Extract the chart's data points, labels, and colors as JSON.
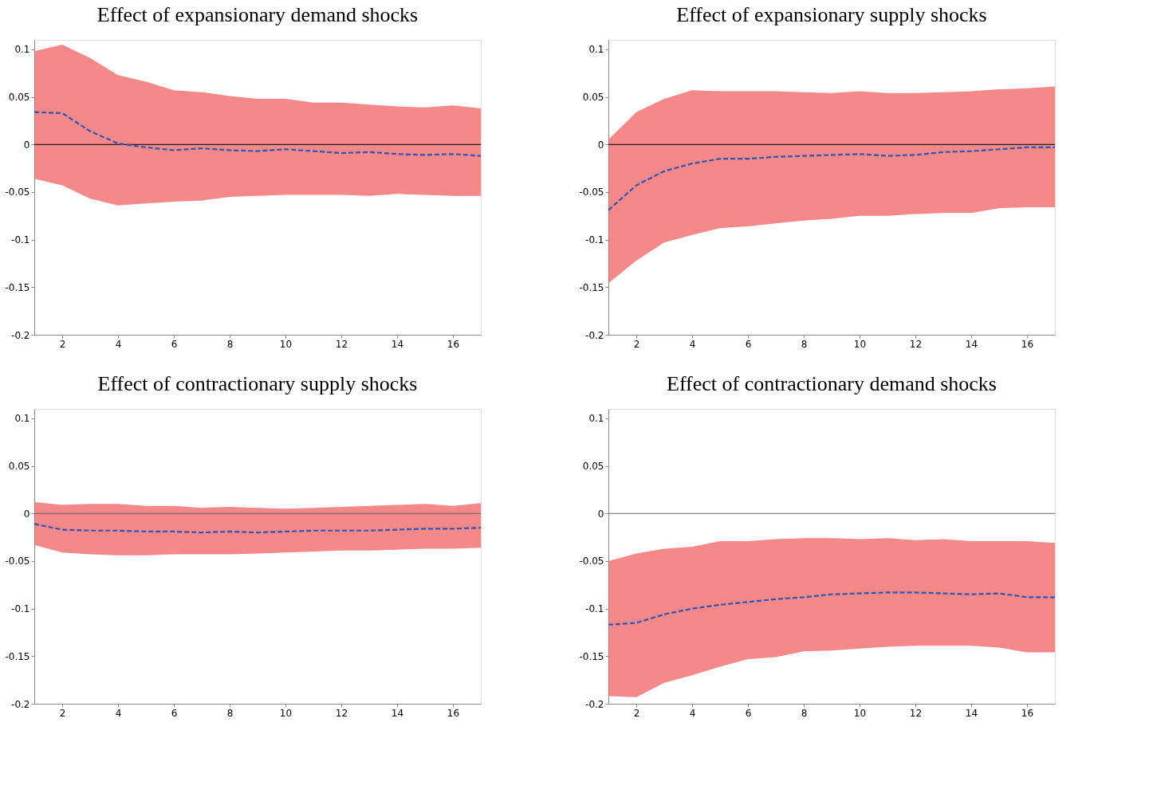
{
  "chart_data": [
    {
      "type": "line",
      "title": "Effect of expansionary demand shocks",
      "x": [
        1,
        2,
        3,
        4,
        5,
        6,
        7,
        8,
        9,
        10,
        11,
        12,
        13,
        14,
        15,
        16,
        17
      ],
      "xlim": [
        1,
        17
      ],
      "xticks": [
        2,
        4,
        6,
        8,
        10,
        12,
        14,
        16
      ],
      "ylim": [
        -0.2,
        0.11
      ],
      "yticks": [
        -0.2,
        -0.15,
        -0.1,
        -0.05,
        0,
        0.05,
        0.1
      ],
      "grid": false,
      "ref_lines": [
        {
          "axis": "y",
          "value": 0,
          "color": "#000000"
        }
      ],
      "series": [
        {
          "color": "#2f55b5",
          "line_style": "dashed",
          "values": [
            0.034,
            0.033,
            0.014,
            0.001,
            -0.003,
            -0.006,
            -0.004,
            -0.006,
            -0.007,
            -0.005,
            -0.007,
            -0.009,
            -0.008,
            -0.01,
            -0.011,
            -0.01,
            -0.012
          ],
          "upper": [
            0.098,
            0.105,
            0.091,
            0.073,
            0.066,
            0.057,
            0.055,
            0.051,
            0.048,
            0.048,
            0.044,
            0.044,
            0.042,
            0.04,
            0.039,
            0.041,
            0.038
          ],
          "lower": [
            -0.036,
            -0.043,
            -0.057,
            -0.064,
            -0.062,
            -0.06,
            -0.059,
            -0.055,
            -0.054,
            -0.053,
            -0.053,
            -0.053,
            -0.054,
            -0.052,
            -0.053,
            -0.054,
            -0.054
          ]
        }
      ]
    },
    {
      "type": "line",
      "title": "Effect of expansionary supply shocks",
      "x": [
        1,
        2,
        3,
        4,
        5,
        6,
        7,
        8,
        9,
        10,
        11,
        12,
        13,
        14,
        15,
        16,
        17
      ],
      "xlim": [
        1,
        17
      ],
      "xticks": [
        2,
        4,
        6,
        8,
        10,
        12,
        14,
        16
      ],
      "ylim": [
        -0.2,
        0.11
      ],
      "yticks": [
        -0.2,
        -0.15,
        -0.1,
        -0.05,
        0,
        0.05,
        0.1
      ],
      "grid": false,
      "ref_lines": [
        {
          "axis": "y",
          "value": 0,
          "color": "#000000"
        }
      ],
      "series": [
        {
          "color": "#2f55b5",
          "line_style": "dashed",
          "values": [
            -0.069,
            -0.043,
            -0.028,
            -0.02,
            -0.015,
            -0.015,
            -0.013,
            -0.012,
            -0.011,
            -0.01,
            -0.012,
            -0.011,
            -0.008,
            -0.007,
            -0.005,
            -0.003,
            -0.003
          ],
          "upper": [
            0.005,
            0.034,
            0.048,
            0.057,
            0.056,
            0.056,
            0.056,
            0.055,
            0.054,
            0.056,
            0.054,
            0.054,
            0.055,
            0.056,
            0.058,
            0.059,
            0.061
          ],
          "lower": [
            -0.146,
            -0.122,
            -0.103,
            -0.095,
            -0.088,
            -0.086,
            -0.083,
            -0.08,
            -0.078,
            -0.075,
            -0.075,
            -0.073,
            -0.072,
            -0.072,
            -0.067,
            -0.066,
            -0.066
          ]
        }
      ]
    },
    {
      "type": "line",
      "title": "Effect of contractionary supply shocks",
      "x": [
        1,
        2,
        3,
        4,
        5,
        6,
        7,
        8,
        9,
        10,
        11,
        12,
        13,
        14,
        15,
        16,
        17
      ],
      "xlim": [
        1,
        17
      ],
      "xticks": [
        2,
        4,
        6,
        8,
        10,
        12,
        14,
        16
      ],
      "ylim": [
        -0.2,
        0.11
      ],
      "yticks": [
        -0.2,
        -0.15,
        -0.1,
        -0.05,
        0,
        0.05,
        0.1
      ],
      "grid": false,
      "ref_lines": [
        {
          "axis": "y",
          "value": 0,
          "color": "#666666"
        }
      ],
      "series": [
        {
          "color": "#2f55b5",
          "line_style": "dashed",
          "values": [
            -0.011,
            -0.017,
            -0.018,
            -0.018,
            -0.019,
            -0.019,
            -0.02,
            -0.019,
            -0.02,
            -0.019,
            -0.018,
            -0.018,
            -0.018,
            -0.017,
            -0.016,
            -0.016,
            -0.015
          ],
          "upper": [
            0.012,
            0.009,
            0.01,
            0.01,
            0.008,
            0.008,
            0.006,
            0.007,
            0.006,
            0.005,
            0.006,
            0.007,
            0.008,
            0.009,
            0.01,
            0.008,
            0.011
          ],
          "lower": [
            -0.033,
            -0.041,
            -0.043,
            -0.044,
            -0.044,
            -0.043,
            -0.043,
            -0.043,
            -0.042,
            -0.041,
            -0.04,
            -0.039,
            -0.039,
            -0.038,
            -0.037,
            -0.037,
            -0.036
          ]
        }
      ]
    },
    {
      "type": "line",
      "title": "Effect of contractionary demand shocks",
      "x": [
        1,
        2,
        3,
        4,
        5,
        6,
        7,
        8,
        9,
        10,
        11,
        12,
        13,
        14,
        15,
        16,
        17
      ],
      "xlim": [
        1,
        17
      ],
      "xticks": [
        2,
        4,
        6,
        8,
        10,
        12,
        14,
        16
      ],
      "ylim": [
        -0.2,
        0.11
      ],
      "yticks": [
        -0.2,
        -0.15,
        -0.1,
        -0.05,
        0,
        0.05,
        0.1
      ],
      "grid": false,
      "ref_lines": [
        {
          "axis": "y",
          "value": 0,
          "color": "#666666"
        }
      ],
      "series": [
        {
          "color": "#2f55b5",
          "line_style": "dashed",
          "values": [
            -0.117,
            -0.115,
            -0.106,
            -0.1,
            -0.096,
            -0.093,
            -0.09,
            -0.088,
            -0.085,
            -0.084,
            -0.083,
            -0.083,
            -0.084,
            -0.085,
            -0.084,
            -0.088,
            -0.088
          ],
          "upper": [
            -0.05,
            -0.042,
            -0.037,
            -0.035,
            -0.029,
            -0.029,
            -0.027,
            -0.026,
            -0.026,
            -0.027,
            -0.026,
            -0.028,
            -0.027,
            -0.029,
            -0.029,
            -0.029,
            -0.031
          ],
          "lower": [
            -0.192,
            -0.193,
            -0.178,
            -0.17,
            -0.161,
            -0.153,
            -0.151,
            -0.145,
            -0.144,
            -0.142,
            -0.14,
            -0.139,
            -0.139,
            -0.139,
            -0.141,
            -0.146,
            -0.146
          ]
        }
      ]
    }
  ]
}
